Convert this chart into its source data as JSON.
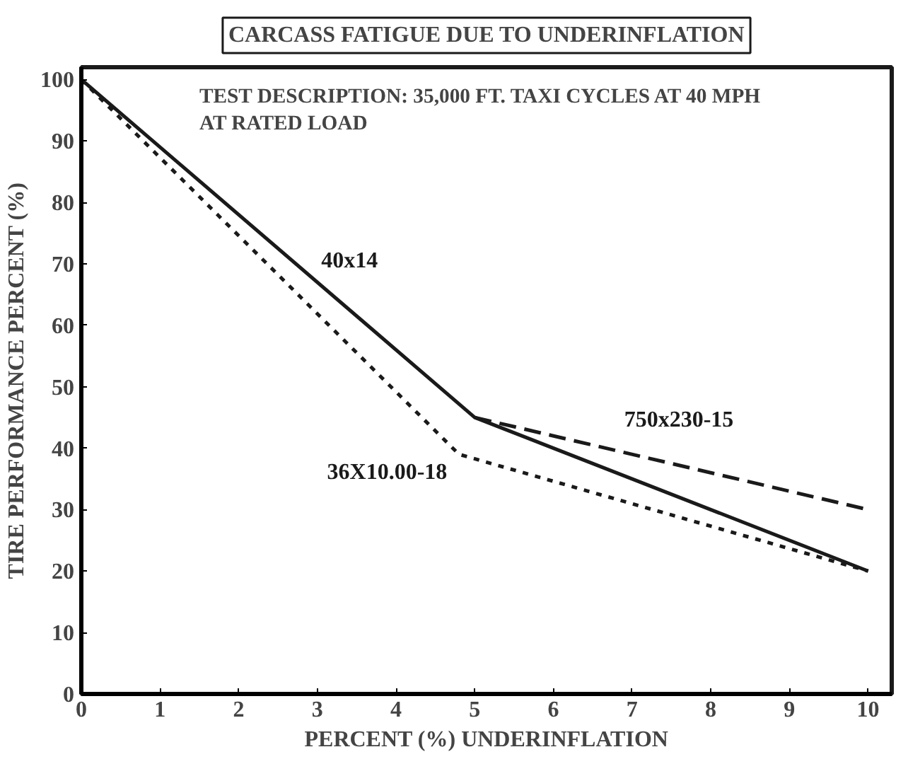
{
  "chart_data": {
    "type": "line",
    "title": "CARCASS FATIGUE DUE TO UNDERINFLATION",
    "xlabel": "PERCENT (%) UNDERINFLATION",
    "ylabel": "TIRE PERFORMANCE PERCENT (%)",
    "annotations": [
      "TEST DESCRIPTION: 35,000 FT. TAXI CYCLES AT 40 MPH\nAT RATED LOAD"
    ],
    "series": [
      {
        "name": "40x14",
        "color": "#1a1a1a",
        "line_style": "solid",
        "x": [
          0,
          5,
          10
        ],
        "values": [
          100,
          45,
          20
        ]
      },
      {
        "name": "750x230-15",
        "color": "#1a1a1a",
        "line_style": "dashed",
        "x": [
          5,
          10
        ],
        "values": [
          45,
          30
        ]
      },
      {
        "name": "36X10.00-18",
        "color": "#1a1a1a",
        "line_style": "dotted",
        "x": [
          0,
          4.8,
          10
        ],
        "values": [
          100,
          39,
          20
        ]
      }
    ],
    "xlim": [
      0,
      10.3
    ],
    "ylim": [
      0,
      102
    ],
    "xticks": [
      0,
      1,
      2,
      3,
      4,
      5,
      6,
      7,
      8,
      9,
      10
    ],
    "yticks": [
      0,
      10,
      20,
      30,
      40,
      50,
      60,
      70,
      80,
      90,
      100
    ],
    "grid": false,
    "legend": false,
    "marker": "none"
  }
}
